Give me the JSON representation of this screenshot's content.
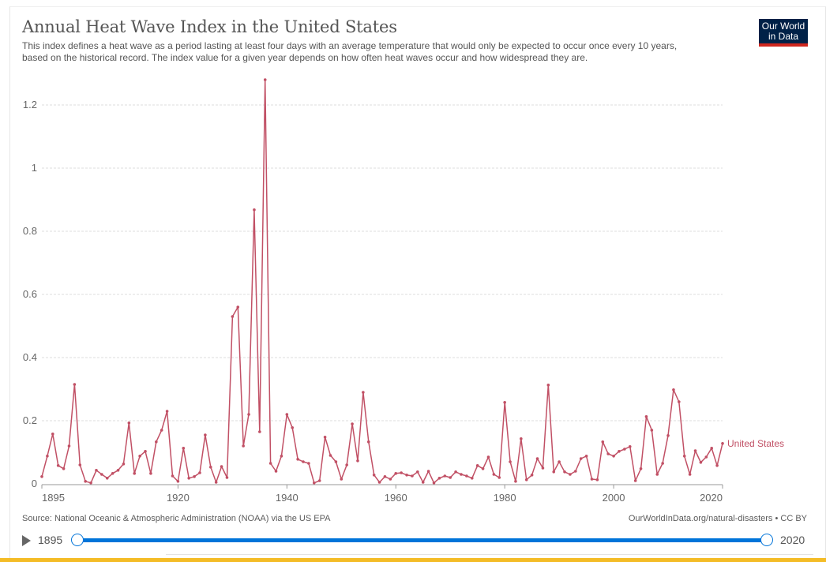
{
  "header": {
    "title": "Annual Heat Wave Index in the United States",
    "subtitle_line1": "This index defines a heat wave as a period lasting at least four days with an average temperature that would only be expected to occur once every 10 years,",
    "subtitle_line2": "based on the historical record. The index value for a given year depends on how often heat waves occur and how widespread they are.",
    "logo_line1": "Our World",
    "logo_line2": "in Data"
  },
  "footer": {
    "source": "Source: National Oceanic & Atmospheric Administration (NOAA) via the US EPA",
    "license": "OurWorldInData.org/natural-disasters • CC BY"
  },
  "timeline": {
    "start_year": "1895",
    "end_year": "2020"
  },
  "colors": {
    "series": "#c15065",
    "grid": "#dddddd",
    "axis": "#999999",
    "slider": "#0074d9",
    "logo_bg": "#002147",
    "logo_accent": "#ce261e"
  },
  "chart_data": {
    "type": "line",
    "title": "Annual Heat Wave Index in the United States",
    "xlabel": "",
    "ylabel": "",
    "xlim": [
      1895,
      2020
    ],
    "ylim": [
      0,
      1.3
    ],
    "grid": true,
    "x_ticks": [
      "1895",
      "1920",
      "1940",
      "1960",
      "1980",
      "2000",
      "2020"
    ],
    "y_ticks": [
      "0",
      "0.2",
      "0.4",
      "0.6",
      "0.8",
      "1",
      "1.2"
    ],
    "legend": "right-inline",
    "series": [
      {
        "name": "United States",
        "x": [
          1895,
          1896,
          1897,
          1898,
          1899,
          1900,
          1901,
          1902,
          1903,
          1904,
          1905,
          1906,
          1907,
          1908,
          1909,
          1910,
          1911,
          1912,
          1913,
          1914,
          1915,
          1916,
          1917,
          1918,
          1919,
          1920,
          1921,
          1922,
          1923,
          1924,
          1925,
          1926,
          1927,
          1928,
          1929,
          1930,
          1931,
          1932,
          1933,
          1934,
          1935,
          1936,
          1937,
          1938,
          1939,
          1940,
          1941,
          1942,
          1943,
          1944,
          1945,
          1946,
          1947,
          1948,
          1949,
          1950,
          1951,
          1952,
          1953,
          1954,
          1955,
          1956,
          1957,
          1958,
          1959,
          1960,
          1961,
          1962,
          1963,
          1964,
          1965,
          1966,
          1967,
          1968,
          1969,
          1970,
          1971,
          1972,
          1973,
          1974,
          1975,
          1976,
          1977,
          1978,
          1979,
          1980,
          1981,
          1982,
          1983,
          1984,
          1985,
          1986,
          1987,
          1988,
          1989,
          1990,
          1991,
          1992,
          1993,
          1994,
          1995,
          1996,
          1997,
          1998,
          1999,
          2000,
          2001,
          2002,
          2003,
          2004,
          2005,
          2006,
          2007,
          2008,
          2009,
          2010,
          2011,
          2012,
          2013,
          2014,
          2015,
          2016,
          2017,
          2018,
          2019,
          2020
        ],
        "values": [
          0.023,
          0.088,
          0.158,
          0.058,
          0.048,
          0.12,
          0.315,
          0.06,
          0.008,
          0.003,
          0.043,
          0.03,
          0.018,
          0.033,
          0.043,
          0.063,
          0.193,
          0.033,
          0.088,
          0.103,
          0.033,
          0.133,
          0.17,
          0.23,
          0.025,
          0.008,
          0.113,
          0.018,
          0.023,
          0.035,
          0.155,
          0.053,
          0.005,
          0.055,
          0.02,
          0.53,
          0.56,
          0.12,
          0.22,
          0.868,
          0.165,
          1.28,
          0.065,
          0.04,
          0.088,
          0.22,
          0.178,
          0.078,
          0.07,
          0.065,
          0.003,
          0.01,
          0.148,
          0.09,
          0.07,
          0.015,
          0.06,
          0.19,
          0.073,
          0.29,
          0.133,
          0.028,
          0.005,
          0.023,
          0.015,
          0.033,
          0.035,
          0.028,
          0.025,
          0.038,
          0.005,
          0.04,
          0.003,
          0.018,
          0.025,
          0.02,
          0.038,
          0.03,
          0.025,
          0.018,
          0.058,
          0.048,
          0.085,
          0.03,
          0.02,
          0.258,
          0.07,
          0.008,
          0.143,
          0.013,
          0.028,
          0.08,
          0.05,
          0.313,
          0.038,
          0.07,
          0.038,
          0.03,
          0.04,
          0.08,
          0.088,
          0.015,
          0.013,
          0.133,
          0.095,
          0.088,
          0.103,
          0.11,
          0.118,
          0.01,
          0.048,
          0.213,
          0.17,
          0.03,
          0.065,
          0.153,
          0.298,
          0.26,
          0.088,
          0.03,
          0.105,
          0.068,
          0.085,
          0.113,
          0.058,
          0.128
        ]
      }
    ]
  }
}
